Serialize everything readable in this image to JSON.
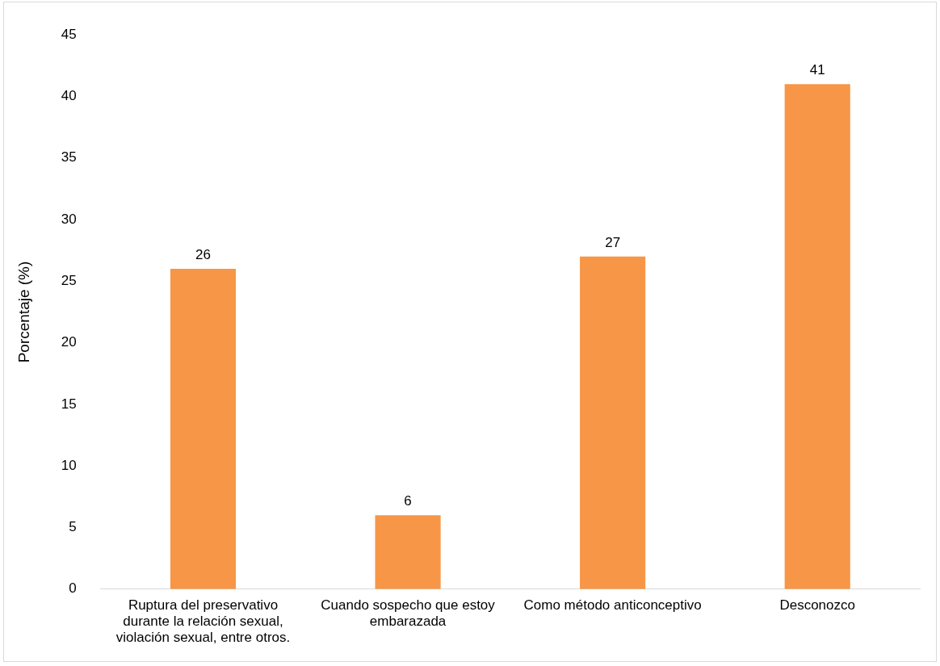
{
  "chart_data": {
    "type": "bar",
    "ylabel": "Porcentaje (%)",
    "categories": [
      "Ruptura del preservativo durante la relación sexual, violación sexual, entre otros.",
      "Cuando sospecho que estoy embarazada",
      "Como método anticonceptivo",
      "Desconozco"
    ],
    "values": [
      26,
      6,
      27,
      41
    ],
    "color": "#f79646",
    "ylim": [
      0,
      45
    ],
    "yticks": [
      0,
      5,
      10,
      15,
      20,
      25,
      30,
      35,
      40,
      45
    ],
    "grid": false,
    "data_labels": true,
    "legend": false
  }
}
